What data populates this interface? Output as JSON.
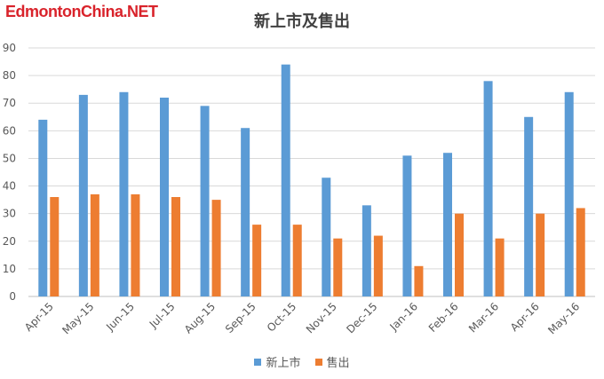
{
  "watermark": "EdmontonChina.NET",
  "chart_data": {
    "type": "bar",
    "title": "新上市及售出",
    "categories": [
      "Apr-15",
      "May-15",
      "Jun-15",
      "Jul-15",
      "Aug-15",
      "Sep-15",
      "Oct-15",
      "Nov-15",
      "Dec-15",
      "Jan-16",
      "Feb-16",
      "Mar-16",
      "Apr-16",
      "May-16"
    ],
    "series": [
      {
        "name": "新上市",
        "color": "#5b9bd5",
        "values": [
          64,
          73,
          74,
          72,
          69,
          61,
          84,
          43,
          33,
          51,
          52,
          78,
          65,
          74
        ]
      },
      {
        "name": "售出",
        "color": "#ed7d31",
        "values": [
          36,
          37,
          37,
          36,
          35,
          26,
          26,
          21,
          22,
          11,
          30,
          21,
          30,
          32
        ]
      }
    ],
    "ylim": [
      0,
      90
    ],
    "yticks": [
      0,
      10,
      20,
      30,
      40,
      50,
      60,
      70,
      80,
      90
    ],
    "grid": true,
    "legend_position": "bottom"
  }
}
